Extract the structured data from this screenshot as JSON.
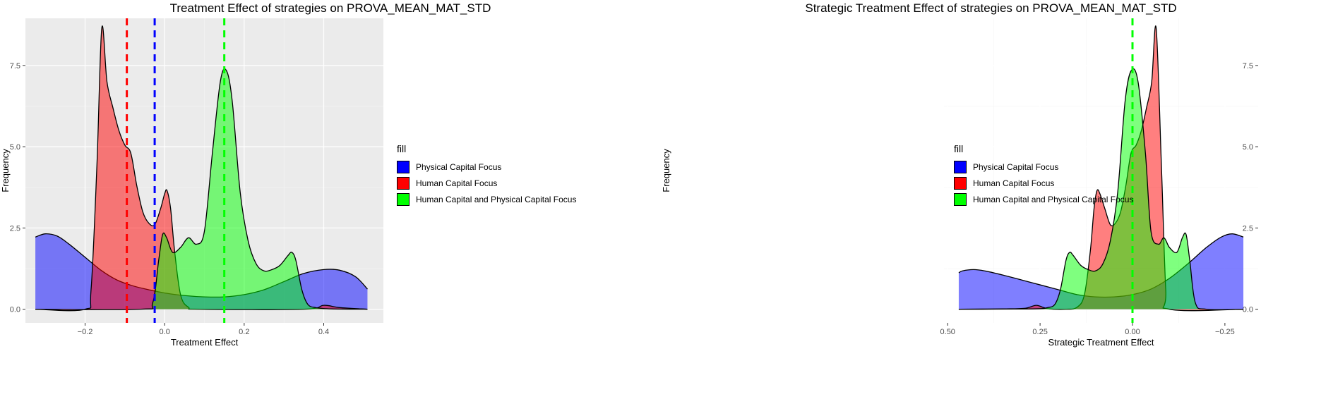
{
  "chart_data": [
    {
      "type": "area",
      "title": "Treatment Effect of strategies on PROVA_MEAN_MAT_STD",
      "xlabel": "Treatment Effect",
      "ylabel": "Frequency",
      "xlim": [
        -0.35,
        0.55
      ],
      "ylim": [
        -0.42,
        8.95
      ],
      "x_ticks": [
        -0.2,
        0.0,
        0.2,
        0.4
      ],
      "x_tick_labels": [
        "−0.2",
        "0.0",
        "0.2",
        "0.4"
      ],
      "y_ticks": [
        0,
        2.5,
        5.0,
        7.5
      ],
      "y_tick_labels": [
        "0.0",
        "2.5",
        "5.0",
        "7.5"
      ],
      "grid": true,
      "legend_position": "right",
      "legend_title": "fill",
      "series": [
        {
          "name": "Physical Capital Focus",
          "color": "#0000ff",
          "mean_line": -0.025,
          "points": [
            [
              -0.325,
              2.22
            ],
            [
              -0.3,
              2.32
            ],
            [
              -0.27,
              2.25
            ],
            [
              -0.24,
              2.0
            ],
            [
              -0.2,
              1.6
            ],
            [
              -0.16,
              1.2
            ],
            [
              -0.12,
              0.9
            ],
            [
              -0.08,
              0.72
            ],
            [
              -0.04,
              0.6
            ],
            [
              0.0,
              0.5
            ],
            [
              0.05,
              0.42
            ],
            [
              0.1,
              0.38
            ],
            [
              0.15,
              0.38
            ],
            [
              0.2,
              0.45
            ],
            [
              0.25,
              0.6
            ],
            [
              0.3,
              0.85
            ],
            [
              0.35,
              1.1
            ],
            [
              0.4,
              1.22
            ],
            [
              0.44,
              1.2
            ],
            [
              0.48,
              1.0
            ],
            [
              0.51,
              0.62
            ]
          ]
        },
        {
          "name": "Human Capital Focus",
          "color": "#ff0000",
          "mean_line": -0.095,
          "points": [
            [
              -0.325,
              0.0
            ],
            [
              -0.2,
              0.0
            ],
            [
              -0.185,
              0.6
            ],
            [
              -0.17,
              4.5
            ],
            [
              -0.158,
              8.65
            ],
            [
              -0.145,
              7.0
            ],
            [
              -0.13,
              6.2
            ],
            [
              -0.115,
              5.5
            ],
            [
              -0.1,
              5.05
            ],
            [
              -0.085,
              4.8
            ],
            [
              -0.07,
              3.8
            ],
            [
              -0.055,
              3.0
            ],
            [
              -0.04,
              2.65
            ],
            [
              -0.025,
              2.6
            ],
            [
              -0.01,
              3.1
            ],
            [
              0.0,
              3.55
            ],
            [
              0.006,
              3.65
            ],
            [
              0.015,
              3.1
            ],
            [
              0.025,
              1.8
            ],
            [
              0.04,
              0.45
            ],
            [
              0.06,
              0.06
            ],
            [
              0.09,
              0.0
            ],
            [
              0.35,
              0.0
            ],
            [
              0.4,
              0.12
            ],
            [
              0.44,
              0.05
            ],
            [
              0.51,
              0.0
            ]
          ]
        },
        {
          "name": "Human Capital and Physical Capital Focus",
          "color": "#00ff00",
          "mean_line": 0.15,
          "points": [
            [
              -0.325,
              0.0
            ],
            [
              -0.06,
              0.0
            ],
            [
              -0.03,
              0.2
            ],
            [
              -0.015,
              1.5
            ],
            [
              -0.005,
              2.3
            ],
            [
              0.005,
              2.2
            ],
            [
              0.02,
              1.75
            ],
            [
              0.04,
              1.9
            ],
            [
              0.06,
              2.2
            ],
            [
              0.08,
              2.0
            ],
            [
              0.1,
              2.4
            ],
            [
              0.12,
              4.8
            ],
            [
              0.14,
              7.0
            ],
            [
              0.155,
              7.35
            ],
            [
              0.17,
              6.4
            ],
            [
              0.19,
              3.6
            ],
            [
              0.21,
              2.1
            ],
            [
              0.23,
              1.4
            ],
            [
              0.25,
              1.18
            ],
            [
              0.27,
              1.22
            ],
            [
              0.29,
              1.35
            ],
            [
              0.31,
              1.65
            ],
            [
              0.32,
              1.75
            ],
            [
              0.33,
              1.5
            ],
            [
              0.345,
              0.6
            ],
            [
              0.36,
              0.15
            ],
            [
              0.38,
              0.05
            ],
            [
              0.42,
              0.01
            ],
            [
              0.51,
              0.0
            ]
          ]
        }
      ]
    },
    {
      "type": "area",
      "title": "Strategic Treatment Effect of strategies on PROVA_MEAN_MAT_STD",
      "xlabel": "Strategic Treatment Effect",
      "ylabel": "Frequency",
      "xlim": [
        -0.34,
        0.51
      ],
      "ylim": [
        -0.42,
        8.95
      ],
      "x_ticks": [
        -0.25,
        0.0,
        0.25,
        0.5
      ],
      "x_tick_labels": [
        "−0.25",
        "0.00",
        "0.25",
        "0.50"
      ],
      "y_ticks": [
        0,
        2.5,
        5.0,
        7.5
      ],
      "y_tick_labels": [
        "0.0",
        "2.5",
        "5.0",
        "7.5"
      ],
      "grid": true,
      "legend_position": "right",
      "legend_title": "fill",
      "series": [
        {
          "name": "Physical Capital Focus",
          "color": "#0000ff",
          "mean_line": 0.0,
          "points": [
            [
              -0.3,
              2.22
            ],
            [
              -0.27,
              2.32
            ],
            [
              -0.24,
              2.22
            ],
            [
              -0.2,
              1.9
            ],
            [
              -0.15,
              1.4
            ],
            [
              -0.1,
              0.95
            ],
            [
              -0.05,
              0.62
            ],
            [
              0.0,
              0.45
            ],
            [
              0.05,
              0.38
            ],
            [
              0.1,
              0.38
            ],
            [
              0.15,
              0.45
            ],
            [
              0.2,
              0.6
            ],
            [
              0.25,
              0.75
            ],
            [
              0.3,
              0.9
            ],
            [
              0.35,
              1.05
            ],
            [
              0.4,
              1.18
            ],
            [
              0.43,
              1.22
            ],
            [
              0.46,
              1.18
            ],
            [
              0.47,
              1.12
            ]
          ]
        },
        {
          "name": "Human Capital Focus",
          "color": "#ff0000",
          "mean_line": 0.0,
          "points": [
            [
              -0.3,
              0.0
            ],
            [
              -0.1,
              0.0
            ],
            [
              -0.09,
              0.6
            ],
            [
              -0.078,
              4.5
            ],
            [
              -0.064,
              8.65
            ],
            [
              -0.052,
              7.0
            ],
            [
              -0.038,
              6.2
            ],
            [
              -0.024,
              5.5
            ],
            [
              -0.01,
              5.05
            ],
            [
              0.004,
              4.8
            ],
            [
              0.018,
              3.8
            ],
            [
              0.032,
              3.0
            ],
            [
              0.046,
              2.65
            ],
            [
              0.06,
              2.6
            ],
            [
              0.075,
              3.1
            ],
            [
              0.088,
              3.55
            ],
            [
              0.096,
              3.65
            ],
            [
              0.104,
              3.1
            ],
            [
              0.114,
              1.8
            ],
            [
              0.13,
              0.45
            ],
            [
              0.15,
              0.06
            ],
            [
              0.18,
              0.0
            ],
            [
              0.23,
              0.02
            ],
            [
              0.26,
              0.12
            ],
            [
              0.29,
              0.03
            ],
            [
              0.35,
              0.01
            ],
            [
              0.47,
              0.0
            ]
          ]
        },
        {
          "name": "Human Capital and Physical Capital Focus",
          "color": "#00ff00",
          "mean_line": 0.0,
          "points": [
            [
              -0.3,
              0.0
            ],
            [
              -0.2,
              0.0
            ],
            [
              -0.17,
              0.2
            ],
            [
              -0.155,
              1.5
            ],
            [
              -0.145,
              2.3
            ],
            [
              -0.135,
              2.2
            ],
            [
              -0.12,
              1.75
            ],
            [
              -0.1,
              1.9
            ],
            [
              -0.085,
              2.2
            ],
            [
              -0.07,
              2.0
            ],
            [
              -0.05,
              2.4
            ],
            [
              -0.035,
              4.8
            ],
            [
              -0.015,
              7.0
            ],
            [
              0.003,
              7.35
            ],
            [
              0.02,
              6.4
            ],
            [
              0.04,
              3.6
            ],
            [
              0.06,
              2.1
            ],
            [
              0.08,
              1.4
            ],
            [
              0.1,
              1.18
            ],
            [
              0.12,
              1.22
            ],
            [
              0.14,
              1.35
            ],
            [
              0.16,
              1.65
            ],
            [
              0.17,
              1.75
            ],
            [
              0.18,
              1.5
            ],
            [
              0.195,
              0.6
            ],
            [
              0.21,
              0.15
            ],
            [
              0.23,
              0.05
            ],
            [
              0.27,
              0.01
            ],
            [
              0.47,
              0.0
            ]
          ]
        }
      ]
    }
  ],
  "colors": {
    "panel_background": "#ebebeb",
    "grid_major": "#ffffff",
    "grid_minor": "#f5f5f5",
    "fill_alpha": 0.5
  }
}
